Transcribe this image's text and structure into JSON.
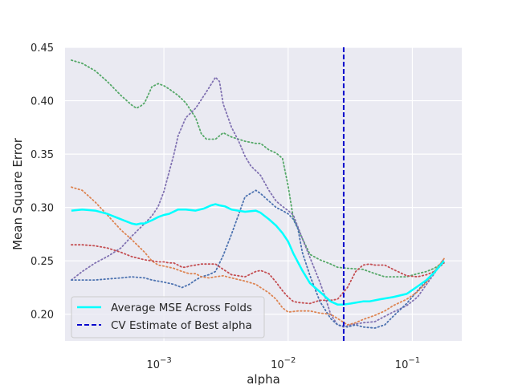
{
  "chart_data": {
    "type": "line",
    "title": "",
    "xlabel": "alpha",
    "ylabel": "Mean Square Error",
    "xscale": "log",
    "xlim": [
      0.00016,
      0.25
    ],
    "ylim": [
      0.175,
      0.45
    ],
    "x_ticks": [
      {
        "value": 0.001,
        "label_base": "10",
        "label_exp": "−3"
      },
      {
        "value": 0.01,
        "label_base": "10",
        "label_exp": "−2"
      },
      {
        "value": 0.1,
        "label_base": "10",
        "label_exp": "−1"
      }
    ],
    "y_ticks": [
      {
        "value": 0.2,
        "label": "0.20"
      },
      {
        "value": 0.25,
        "label": "0.25"
      },
      {
        "value": 0.3,
        "label": "0.30"
      },
      {
        "value": 0.35,
        "label": "0.35"
      },
      {
        "value": 0.4,
        "label": "0.40"
      },
      {
        "value": 0.45,
        "label": "0.45"
      }
    ],
    "grid": true,
    "legend_position": "bottom-left",
    "legend": [
      {
        "label": "Average MSE Across Folds",
        "color": "#00ffff",
        "style": "solid"
      },
      {
        "label": "CV Estimate of Best alpha",
        "color": "#0000cc",
        "style": "dashed"
      }
    ],
    "vline": {
      "x": 0.028,
      "color": "#0000cc",
      "style": "dashed"
    },
    "mean_series": {
      "color": "#00ffff",
      "x": [
        0.00018,
        0.00022,
        0.00028,
        0.00035,
        0.00045,
        0.00055,
        0.0006,
        0.00065,
        0.0007,
        0.0008,
        0.0009,
        0.001,
        0.0011,
        0.0013,
        0.0015,
        0.0018,
        0.0021,
        0.0024,
        0.0026,
        0.0028,
        0.0031,
        0.0035,
        0.0045,
        0.0055,
        0.006,
        0.007,
        0.008,
        0.009,
        0.01,
        0.011,
        0.013,
        0.015,
        0.018,
        0.022,
        0.025,
        0.028,
        0.032,
        0.04,
        0.045,
        0.055,
        0.07,
        0.09,
        0.11,
        0.13,
        0.15,
        0.18
      ],
      "y": [
        0.297,
        0.298,
        0.297,
        0.294,
        0.289,
        0.285,
        0.284,
        0.285,
        0.285,
        0.288,
        0.291,
        0.293,
        0.294,
        0.298,
        0.298,
        0.297,
        0.299,
        0.302,
        0.303,
        0.302,
        0.301,
        0.298,
        0.296,
        0.297,
        0.295,
        0.289,
        0.283,
        0.276,
        0.268,
        0.257,
        0.241,
        0.229,
        0.221,
        0.212,
        0.209,
        0.209,
        0.21,
        0.212,
        0.212,
        0.214,
        0.216,
        0.219,
        0.226,
        0.232,
        0.239,
        0.25
      ]
    },
    "folds": [
      {
        "color": "#55a868",
        "x": [
          0.00018,
          0.00022,
          0.00028,
          0.00035,
          0.00045,
          0.00055,
          0.0006,
          0.00065,
          0.0007,
          0.0008,
          0.0009,
          0.001,
          0.0011,
          0.0013,
          0.0015,
          0.0018,
          0.002,
          0.0022,
          0.0026,
          0.003,
          0.0035,
          0.0045,
          0.0055,
          0.006,
          0.007,
          0.008,
          0.009,
          0.01,
          0.011,
          0.013,
          0.015,
          0.018,
          0.022,
          0.025,
          0.03,
          0.04,
          0.05,
          0.06,
          0.07,
          0.09,
          0.11,
          0.13,
          0.15,
          0.18
        ],
        "y": [
          0.438,
          0.435,
          0.428,
          0.418,
          0.405,
          0.396,
          0.393,
          0.395,
          0.398,
          0.413,
          0.416,
          0.414,
          0.411,
          0.405,
          0.398,
          0.384,
          0.369,
          0.364,
          0.364,
          0.37,
          0.366,
          0.362,
          0.36,
          0.36,
          0.354,
          0.351,
          0.346,
          0.32,
          0.29,
          0.271,
          0.256,
          0.251,
          0.247,
          0.244,
          0.243,
          0.242,
          0.238,
          0.235,
          0.235,
          0.235,
          0.238,
          0.24,
          0.243,
          0.249
        ]
      },
      {
        "color": "#8172b2",
        "x": [
          0.00018,
          0.00022,
          0.00028,
          0.00035,
          0.00045,
          0.00055,
          0.0007,
          0.0008,
          0.0009,
          0.001,
          0.0011,
          0.0012,
          0.0013,
          0.0015,
          0.0018,
          0.002,
          0.0023,
          0.0026,
          0.0028,
          0.003,
          0.0035,
          0.004,
          0.0045,
          0.005,
          0.006,
          0.007,
          0.008,
          0.009,
          0.01,
          0.011,
          0.013,
          0.015,
          0.018,
          0.02,
          0.022,
          0.025,
          0.028,
          0.032,
          0.04,
          0.05,
          0.06,
          0.07,
          0.09,
          0.11,
          0.13,
          0.15,
          0.18
        ],
        "y": [
          0.232,
          0.24,
          0.248,
          0.254,
          0.262,
          0.273,
          0.285,
          0.292,
          0.301,
          0.315,
          0.333,
          0.349,
          0.367,
          0.384,
          0.393,
          0.401,
          0.412,
          0.422,
          0.418,
          0.397,
          0.375,
          0.362,
          0.348,
          0.339,
          0.33,
          0.316,
          0.306,
          0.301,
          0.297,
          0.293,
          0.271,
          0.253,
          0.23,
          0.215,
          0.2,
          0.19,
          0.188,
          0.19,
          0.192,
          0.193,
          0.198,
          0.202,
          0.208,
          0.216,
          0.228,
          0.238,
          0.252
        ]
      },
      {
        "color": "#4c72b0",
        "x": [
          0.00018,
          0.00022,
          0.00028,
          0.00035,
          0.00045,
          0.00055,
          0.0007,
          0.0008,
          0.0009,
          0.001,
          0.0012,
          0.0014,
          0.0016,
          0.0018,
          0.002,
          0.0023,
          0.0026,
          0.003,
          0.0035,
          0.0045,
          0.0055,
          0.006,
          0.007,
          0.008,
          0.009,
          0.01,
          0.011,
          0.012,
          0.013,
          0.015,
          0.018,
          0.022,
          0.025,
          0.03,
          0.035,
          0.04,
          0.05,
          0.06,
          0.07,
          0.09,
          0.11,
          0.13,
          0.15,
          0.18
        ],
        "y": [
          0.232,
          0.232,
          0.232,
          0.233,
          0.234,
          0.235,
          0.234,
          0.232,
          0.231,
          0.23,
          0.228,
          0.225,
          0.228,
          0.232,
          0.235,
          0.237,
          0.24,
          0.255,
          0.275,
          0.31,
          0.316,
          0.313,
          0.306,
          0.3,
          0.297,
          0.294,
          0.289,
          0.28,
          0.258,
          0.236,
          0.212,
          0.196,
          0.19,
          0.188,
          0.19,
          0.188,
          0.187,
          0.19,
          0.198,
          0.21,
          0.222,
          0.231,
          0.24,
          0.249
        ]
      },
      {
        "color": "#dd8452",
        "x": [
          0.00018,
          0.00022,
          0.00028,
          0.00035,
          0.00045,
          0.00055,
          0.0007,
          0.0008,
          0.0009,
          0.001,
          0.0012,
          0.0014,
          0.0016,
          0.0018,
          0.002,
          0.0023,
          0.0026,
          0.003,
          0.0035,
          0.0045,
          0.0055,
          0.006,
          0.007,
          0.008,
          0.009,
          0.01,
          0.012,
          0.015,
          0.018,
          0.022,
          0.025,
          0.03,
          0.035,
          0.04,
          0.05,
          0.06,
          0.07,
          0.09,
          0.11,
          0.13,
          0.15,
          0.18
        ],
        "y": [
          0.319,
          0.316,
          0.305,
          0.293,
          0.279,
          0.27,
          0.258,
          0.25,
          0.246,
          0.245,
          0.243,
          0.24,
          0.238,
          0.238,
          0.235,
          0.234,
          0.235,
          0.236,
          0.234,
          0.231,
          0.228,
          0.225,
          0.22,
          0.214,
          0.206,
          0.202,
          0.203,
          0.203,
          0.201,
          0.2,
          0.196,
          0.19,
          0.192,
          0.195,
          0.199,
          0.203,
          0.208,
          0.214,
          0.221,
          0.23,
          0.24,
          0.252
        ]
      },
      {
        "color": "#c44e52",
        "x": [
          0.00018,
          0.00022,
          0.00028,
          0.00035,
          0.00045,
          0.00055,
          0.0007,
          0.0008,
          0.0009,
          0.001,
          0.0011,
          0.0012,
          0.0013,
          0.0014,
          0.0015,
          0.0016,
          0.0018,
          0.002,
          0.0023,
          0.0026,
          0.003,
          0.0035,
          0.0045,
          0.0055,
          0.006,
          0.007,
          0.008,
          0.009,
          0.01,
          0.011,
          0.012,
          0.015,
          0.018,
          0.022,
          0.025,
          0.03,
          0.035,
          0.04,
          0.045,
          0.05,
          0.06,
          0.07,
          0.09,
          0.11,
          0.13,
          0.15,
          0.18
        ],
        "y": [
          0.265,
          0.265,
          0.264,
          0.262,
          0.258,
          0.254,
          0.251,
          0.25,
          0.249,
          0.249,
          0.248,
          0.248,
          0.246,
          0.244,
          0.244,
          0.245,
          0.246,
          0.247,
          0.247,
          0.247,
          0.242,
          0.237,
          0.235,
          0.24,
          0.241,
          0.238,
          0.23,
          0.222,
          0.216,
          0.212,
          0.211,
          0.21,
          0.213,
          0.213,
          0.214,
          0.225,
          0.24,
          0.246,
          0.247,
          0.246,
          0.246,
          0.242,
          0.236,
          0.235,
          0.237,
          0.24,
          0.248
        ]
      }
    ]
  }
}
